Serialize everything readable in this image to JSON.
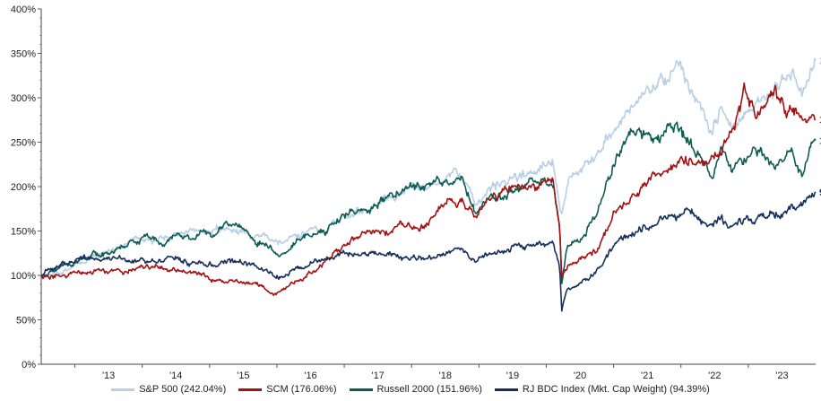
{
  "chart_data": {
    "type": "line",
    "title": "",
    "xlabel": "",
    "ylabel": "",
    "x_range": [
      2012.5,
      2024.0
    ],
    "ylim": [
      0,
      400
    ],
    "y_ticks": [
      {
        "value": 0,
        "label": "0%"
      },
      {
        "value": 50,
        "label": "50%"
      },
      {
        "value": 100,
        "label": "100%"
      },
      {
        "value": 150,
        "label": "150%"
      },
      {
        "value": 200,
        "label": "200%"
      },
      {
        "value": 250,
        "label": "250%"
      },
      {
        "value": 300,
        "label": "300%"
      },
      {
        "value": 350,
        "label": "350%"
      },
      {
        "value": 400,
        "label": "400%"
      }
    ],
    "x_ticks": [
      {
        "value": 2013,
        "label": "'13"
      },
      {
        "value": 2014,
        "label": "'14"
      },
      {
        "value": 2015,
        "label": "'15"
      },
      {
        "value": 2016,
        "label": "'16"
      },
      {
        "value": 2017,
        "label": "'17"
      },
      {
        "value": 2018,
        "label": "'18"
      },
      {
        "value": 2019,
        "label": "'19"
      },
      {
        "value": 2020,
        "label": "'20"
      },
      {
        "value": 2021,
        "label": "'21"
      },
      {
        "value": 2022,
        "label": "'22"
      },
      {
        "value": 2023,
        "label": "'23"
      }
    ],
    "series": [
      {
        "name": "S&P 500 (242.04%)",
        "end_label": "242.04%",
        "color": "#b8cfe6",
        "points": [
          [
            2012.5,
            100
          ],
          [
            2012.7,
            103
          ],
          [
            2013.0,
            112
          ],
          [
            2013.25,
            122
          ],
          [
            2013.5,
            128
          ],
          [
            2013.75,
            135
          ],
          [
            2014.0,
            140
          ],
          [
            2014.25,
            142
          ],
          [
            2014.5,
            145
          ],
          [
            2014.75,
            148
          ],
          [
            2015.0,
            150
          ],
          [
            2015.25,
            153
          ],
          [
            2015.5,
            152
          ],
          [
            2015.65,
            142
          ],
          [
            2015.8,
            147
          ],
          [
            2016.0,
            138
          ],
          [
            2016.1,
            134
          ],
          [
            2016.3,
            144
          ],
          [
            2016.5,
            148
          ],
          [
            2016.75,
            155
          ],
          [
            2017.0,
            165
          ],
          [
            2017.25,
            172
          ],
          [
            2017.5,
            180
          ],
          [
            2017.75,
            190
          ],
          [
            2018.0,
            205
          ],
          [
            2018.1,
            195
          ],
          [
            2018.3,
            198
          ],
          [
            2018.6,
            210
          ],
          [
            2018.75,
            212
          ],
          [
            2018.95,
            180
          ],
          [
            2019.1,
            192
          ],
          [
            2019.3,
            200
          ],
          [
            2019.5,
            206
          ],
          [
            2019.75,
            215
          ],
          [
            2020.0,
            228
          ],
          [
            2020.1,
            235
          ],
          [
            2020.2,
            183
          ],
          [
            2020.23,
            170
          ],
          [
            2020.33,
            205
          ],
          [
            2020.5,
            222
          ],
          [
            2020.75,
            238
          ],
          [
            2021.0,
            262
          ],
          [
            2021.25,
            285
          ],
          [
            2021.5,
            305
          ],
          [
            2021.75,
            325
          ],
          [
            2021.95,
            342
          ],
          [
            2022.1,
            320
          ],
          [
            2022.3,
            285
          ],
          [
            2022.45,
            265
          ],
          [
            2022.6,
            290
          ],
          [
            2022.75,
            270
          ],
          [
            2022.95,
            275
          ],
          [
            2023.1,
            295
          ],
          [
            2023.3,
            300
          ],
          [
            2023.5,
            320
          ],
          [
            2023.65,
            325
          ],
          [
            2023.8,
            300
          ],
          [
            2023.9,
            322
          ],
          [
            2024.0,
            342
          ]
        ]
      },
      {
        "name": "SCM (176.06%)",
        "end_label": "176.06%",
        "color": "#a31214",
        "points": [
          [
            2012.5,
            98
          ],
          [
            2012.7,
            99
          ],
          [
            2013.0,
            101
          ],
          [
            2013.3,
            104
          ],
          [
            2013.6,
            107
          ],
          [
            2013.9,
            106
          ],
          [
            2014.2,
            109
          ],
          [
            2014.5,
            106
          ],
          [
            2014.8,
            103
          ],
          [
            2015.0,
            98
          ],
          [
            2015.2,
            94
          ],
          [
            2015.5,
            92
          ],
          [
            2015.7,
            90
          ],
          [
            2015.85,
            83
          ],
          [
            2015.95,
            79
          ],
          [
            2016.1,
            86
          ],
          [
            2016.3,
            93
          ],
          [
            2016.6,
            108
          ],
          [
            2016.8,
            117
          ],
          [
            2017.0,
            135
          ],
          [
            2017.25,
            148
          ],
          [
            2017.5,
            155
          ],
          [
            2017.7,
            148
          ],
          [
            2017.9,
            162
          ],
          [
            2018.1,
            155
          ],
          [
            2018.3,
            168
          ],
          [
            2018.5,
            178
          ],
          [
            2018.75,
            188
          ],
          [
            2018.95,
            170
          ],
          [
            2019.1,
            185
          ],
          [
            2019.3,
            193
          ],
          [
            2019.5,
            198
          ],
          [
            2019.75,
            200
          ],
          [
            2020.0,
            207
          ],
          [
            2020.1,
            212
          ],
          [
            2020.2,
            150
          ],
          [
            2020.23,
            98
          ],
          [
            2020.3,
            107
          ],
          [
            2020.5,
            120
          ],
          [
            2020.75,
            130
          ],
          [
            2021.0,
            170
          ],
          [
            2021.25,
            190
          ],
          [
            2021.5,
            205
          ],
          [
            2021.75,
            215
          ],
          [
            2022.0,
            225
          ],
          [
            2022.2,
            232
          ],
          [
            2022.4,
            220
          ],
          [
            2022.6,
            238
          ],
          [
            2022.8,
            270
          ],
          [
            2022.95,
            305
          ],
          [
            2023.1,
            282
          ],
          [
            2023.25,
            295
          ],
          [
            2023.4,
            305
          ],
          [
            2023.55,
            290
          ],
          [
            2023.7,
            285
          ],
          [
            2023.85,
            268
          ],
          [
            2024.0,
            276
          ]
        ]
      },
      {
        "name": "Russell 2000 (151.96%)",
        "end_label": "151.96%",
        "color": "#0d5d55",
        "points": [
          [
            2012.5,
            100
          ],
          [
            2012.7,
            105
          ],
          [
            2013.0,
            115
          ],
          [
            2013.3,
            122
          ],
          [
            2013.6,
            130
          ],
          [
            2013.9,
            138
          ],
          [
            2014.1,
            143
          ],
          [
            2014.3,
            138
          ],
          [
            2014.5,
            145
          ],
          [
            2014.7,
            140
          ],
          [
            2014.9,
            148
          ],
          [
            2015.1,
            152
          ],
          [
            2015.3,
            158
          ],
          [
            2015.5,
            155
          ],
          [
            2015.7,
            140
          ],
          [
            2015.85,
            136
          ],
          [
            2016.0,
            128
          ],
          [
            2016.1,
            123
          ],
          [
            2016.3,
            138
          ],
          [
            2016.5,
            145
          ],
          [
            2016.75,
            150
          ],
          [
            2016.9,
            165
          ],
          [
            2017.1,
            170
          ],
          [
            2017.3,
            172
          ],
          [
            2017.5,
            180
          ],
          [
            2017.75,
            190
          ],
          [
            2018.0,
            198
          ],
          [
            2018.2,
            196
          ],
          [
            2018.4,
            208
          ],
          [
            2018.6,
            212
          ],
          [
            2018.75,
            206
          ],
          [
            2018.95,
            170
          ],
          [
            2019.1,
            185
          ],
          [
            2019.3,
            190
          ],
          [
            2019.5,
            192
          ],
          [
            2019.75,
            198
          ],
          [
            2020.0,
            205
          ],
          [
            2020.1,
            210
          ],
          [
            2020.2,
            160
          ],
          [
            2020.23,
            95
          ],
          [
            2020.3,
            130
          ],
          [
            2020.5,
            145
          ],
          [
            2020.75,
            170
          ],
          [
            2021.0,
            230
          ],
          [
            2021.2,
            255
          ],
          [
            2021.4,
            262
          ],
          [
            2021.6,
            255
          ],
          [
            2021.8,
            262
          ],
          [
            2021.95,
            268
          ],
          [
            2022.1,
            245
          ],
          [
            2022.3,
            232
          ],
          [
            2022.45,
            210
          ],
          [
            2022.6,
            240
          ],
          [
            2022.75,
            222
          ],
          [
            2022.95,
            232
          ],
          [
            2023.1,
            242
          ],
          [
            2023.3,
            225
          ],
          [
            2023.5,
            228
          ],
          [
            2023.65,
            240
          ],
          [
            2023.8,
            205
          ],
          [
            2023.9,
            230
          ],
          [
            2024.0,
            252
          ]
        ]
      },
      {
        "name": "RJ BDC Index (Mkt. Cap Weight) (94.39%)",
        "end_label": "94.39%",
        "color": "#16305e",
        "points": [
          [
            2012.5,
            100
          ],
          [
            2012.7,
            108
          ],
          [
            2013.0,
            115
          ],
          [
            2013.3,
            118
          ],
          [
            2013.6,
            120
          ],
          [
            2013.9,
            116
          ],
          [
            2014.2,
            118
          ],
          [
            2014.5,
            120
          ],
          [
            2014.75,
            112
          ],
          [
            2015.0,
            114
          ],
          [
            2015.25,
            117
          ],
          [
            2015.5,
            114
          ],
          [
            2015.75,
            108
          ],
          [
            2015.95,
            100
          ],
          [
            2016.1,
            97
          ],
          [
            2016.3,
            108
          ],
          [
            2016.5,
            113
          ],
          [
            2016.75,
            118
          ],
          [
            2017.0,
            125
          ],
          [
            2017.25,
            128
          ],
          [
            2017.5,
            126
          ],
          [
            2017.75,
            122
          ],
          [
            2018.0,
            118
          ],
          [
            2018.25,
            120
          ],
          [
            2018.5,
            125
          ],
          [
            2018.75,
            128
          ],
          [
            2018.95,
            112
          ],
          [
            2019.1,
            124
          ],
          [
            2019.3,
            128
          ],
          [
            2019.5,
            131
          ],
          [
            2019.75,
            135
          ],
          [
            2020.0,
            139
          ],
          [
            2020.1,
            142
          ],
          [
            2020.2,
            110
          ],
          [
            2020.23,
            60
          ],
          [
            2020.3,
            82
          ],
          [
            2020.5,
            92
          ],
          [
            2020.75,
            105
          ],
          [
            2021.0,
            130
          ],
          [
            2021.25,
            145
          ],
          [
            2021.5,
            155
          ],
          [
            2021.75,
            163
          ],
          [
            2022.0,
            168
          ],
          [
            2022.2,
            172
          ],
          [
            2022.4,
            158
          ],
          [
            2022.6,
            165
          ],
          [
            2022.75,
            150
          ],
          [
            2022.95,
            160
          ],
          [
            2023.2,
            168
          ],
          [
            2023.4,
            170
          ],
          [
            2023.6,
            175
          ],
          [
            2023.8,
            182
          ],
          [
            2024.0,
            194
          ]
        ]
      }
    ]
  }
}
